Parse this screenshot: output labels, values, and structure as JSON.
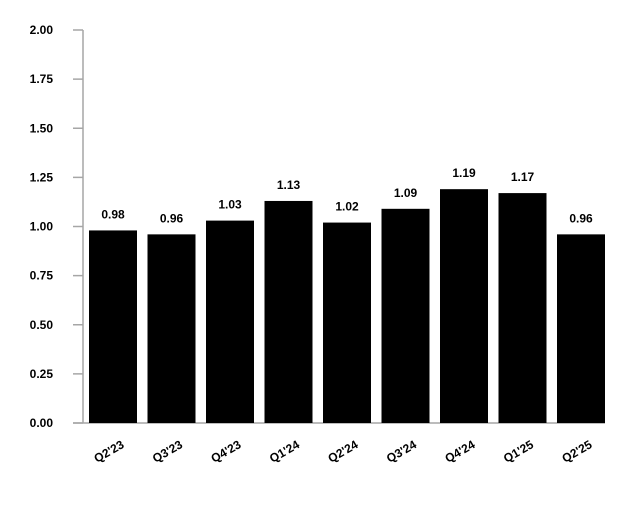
{
  "chart_data": {
    "type": "bar",
    "title": "",
    "xlabel": "",
    "ylabel": "",
    "categories": [
      "Q2'23",
      "Q3'23",
      "Q4'23",
      "Q1'24",
      "Q2'24",
      "Q3'24",
      "Q4'24",
      "Q1'25",
      "Q2'25"
    ],
    "values": [
      0.98,
      0.96,
      1.03,
      1.13,
      1.02,
      1.09,
      1.19,
      1.17,
      0.96
    ],
    "data_labels": [
      "0.98",
      "0.96",
      "1.03",
      "1.13",
      "1.02",
      "1.09",
      "1.19",
      "1.17",
      "0.96"
    ],
    "ylim": [
      0,
      2.0
    ],
    "yticks": [
      "0.00",
      "0.25",
      "0.50",
      "0.75",
      "1.00",
      "1.25",
      "1.50",
      "1.75",
      "2.00"
    ],
    "grid": false,
    "legend": "none",
    "bar_color": "#000000",
    "axis_color": "#a6a6a6"
  }
}
